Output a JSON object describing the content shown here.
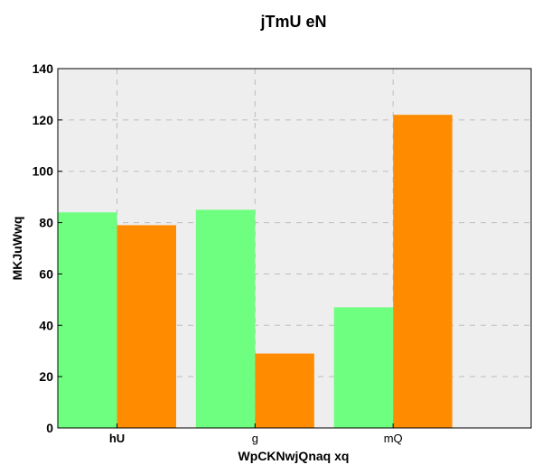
{
  "chart_data": {
    "type": "bar",
    "title": "jTmU eN",
    "xlabel": "WpCKNwjQnaq xq",
    "ylabel": "MKJuWwq",
    "categories": [
      "hU",
      "g",
      "mQ"
    ],
    "category_bold": [
      true,
      false,
      false
    ],
    "series": [
      {
        "values": [
          84,
          85,
          47
        ],
        "color": "#6eff81"
      },
      {
        "values": [
          79,
          29,
          122
        ],
        "color": "#ff8c00"
      }
    ],
    "ylim": [
      0,
      140
    ],
    "yticks": [
      0,
      20,
      40,
      60,
      80,
      100,
      120,
      140
    ],
    "grid": true,
    "plot_background": "#eeeeee",
    "legend": "none"
  }
}
